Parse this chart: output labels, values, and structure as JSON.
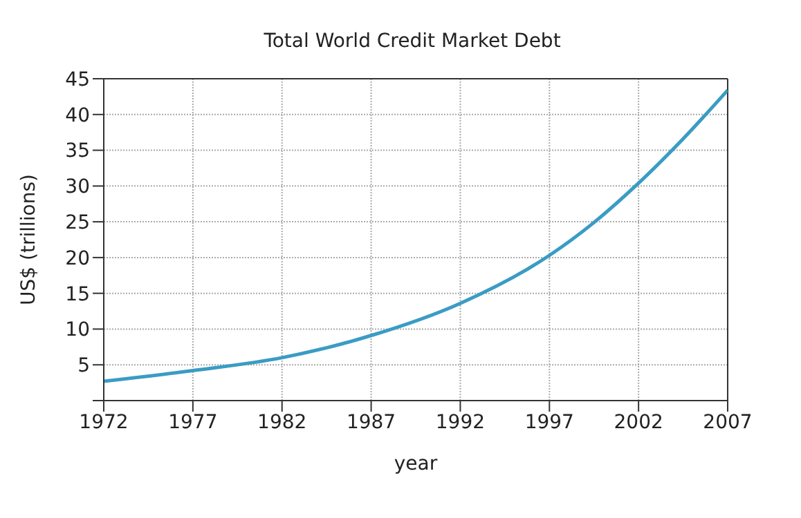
{
  "chart_data": {
    "type": "line",
    "title": "Total World Credit Market Debt",
    "xlabel": "year",
    "ylabel": "US$ (trillions)",
    "x": [
      1972,
      1977,
      1982,
      1987,
      1992,
      1997,
      1999.5,
      2002,
      2004.5,
      2007
    ],
    "series": [
      {
        "color": "#3a9cc4",
        "values": [
          2.7,
          4.2,
          6.0,
          9.1,
          13.6,
          20.3,
          24.9,
          30.4,
          36.6,
          43.4
        ]
      }
    ],
    "xlim": [
      1972,
      2007
    ],
    "xticks": [
      1972,
      1977,
      1982,
      1987,
      1992,
      1997,
      2002,
      2007
    ],
    "ylim": [
      0,
      45
    ],
    "yticks": [
      {
        "value": 0,
        "label": null
      },
      5,
      10,
      15,
      20,
      25,
      30,
      35,
      40,
      45
    ],
    "grid": true,
    "marker": "none",
    "line_style": "solid"
  }
}
